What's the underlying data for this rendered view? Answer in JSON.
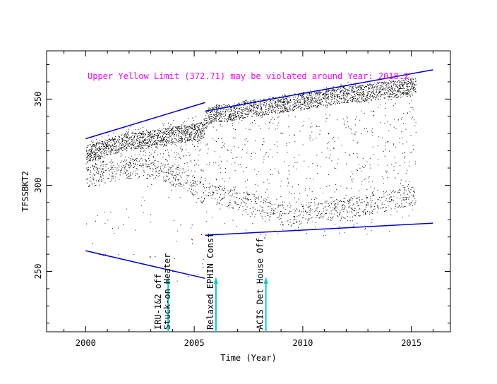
{
  "chart_data": {
    "type": "scatter",
    "title": "",
    "xlabel": "Time (Year)",
    "ylabel": "TFSSBKT2",
    "xlim": [
      1998.2,
      2016.8
    ],
    "ylim": [
      215,
      378
    ],
    "xticks": [
      2000,
      2005,
      2010,
      2015
    ],
    "yticks": [
      250,
      300,
      350
    ],
    "x_minor_step": 1,
    "y_minor_step": 10,
    "warning": {
      "text": "Upper Yellow  Limit (372.71) may be violated around Year: 2018.2",
      "color": "#ff00ff"
    },
    "trend_color": "#0000cc",
    "trend_lines": [
      {
        "name": "upper-trend-early",
        "x": [
          2000.0,
          2005.5
        ],
        "y": [
          327,
          348
        ]
      },
      {
        "name": "lower-trend-early",
        "x": [
          2000.0,
          2005.5
        ],
        "y": [
          262,
          246
        ]
      },
      {
        "name": "upper-trend-late",
        "x": [
          2005.5,
          2016.0
        ],
        "y": [
          343,
          367
        ]
      },
      {
        "name": "lower-trend-late",
        "x": [
          2005.5,
          2016.0
        ],
        "y": [
          271,
          278
        ]
      }
    ],
    "annotations": [
      {
        "name": "irus-annotation",
        "lines": [
          "IRU-1&2 off",
          "Stuck-on Heater"
        ],
        "x": 2003.8,
        "arrow_color": "#00cccc"
      },
      {
        "name": "ephin-annotation",
        "lines": [
          "Relaxed EPHIN Const"
        ],
        "x": 2006.0,
        "arrow_color": "#00cccc"
      },
      {
        "name": "acis-annotation",
        "lines": [
          "ACIS Det House Off"
        ],
        "x": 2008.3,
        "arrow_color": "#00cccc"
      }
    ],
    "series": [
      {
        "name": "TFSSBKT2 samples",
        "color": "#000000",
        "envelope": {
          "x": [
            2000.0,
            2000.5,
            2001.0,
            2001.5,
            2002.0,
            2002.5,
            2003.0,
            2003.5,
            2004.0,
            2004.5,
            2005.0,
            2005.4,
            2005.6,
            2006.0,
            2006.5,
            2007.0,
            2007.5,
            2008.0,
            2008.5,
            2009.0,
            2009.5,
            2010.0,
            2010.5,
            2011.0,
            2011.5,
            2012.0,
            2012.5,
            2013.0,
            2013.5,
            2014.0,
            2014.5,
            2015.0,
            2015.2
          ],
          "high": [
            325,
            328,
            330,
            332,
            334,
            335,
            336,
            338,
            338,
            339,
            340,
            341,
            345,
            347,
            347,
            349,
            350,
            350,
            352,
            353,
            354,
            355,
            356,
            357,
            358,
            360,
            360,
            361,
            362,
            363,
            364,
            366,
            366
          ],
          "core_top": [
            318,
            320,
            322,
            324,
            326,
            326,
            327,
            328,
            329,
            330,
            331,
            332,
            340,
            342,
            342,
            343,
            345,
            345,
            346,
            347,
            348,
            349,
            350,
            351,
            352,
            353,
            353,
            354,
            355,
            356,
            356,
            357,
            357
          ],
          "core_bottom": [
            305,
            306,
            308,
            308,
            310,
            310,
            310,
            308,
            306,
            304,
            300,
            295,
            300,
            295,
            293,
            292,
            290,
            288,
            285,
            283,
            283,
            284,
            285,
            285,
            286,
            287,
            288,
            289,
            290,
            292,
            293,
            294,
            294
          ],
          "low": [
            258,
            256,
            252,
            250,
            250,
            252,
            248,
            245,
            244,
            242,
            238,
            245,
            270,
            278,
            276,
            275,
            273,
            270,
            268,
            270,
            272,
            271,
            272,
            270,
            272,
            273,
            271,
            270,
            270,
            271,
            272,
            272,
            272
          ]
        },
        "gap_years": [
          2009.5
        ]
      }
    ]
  }
}
